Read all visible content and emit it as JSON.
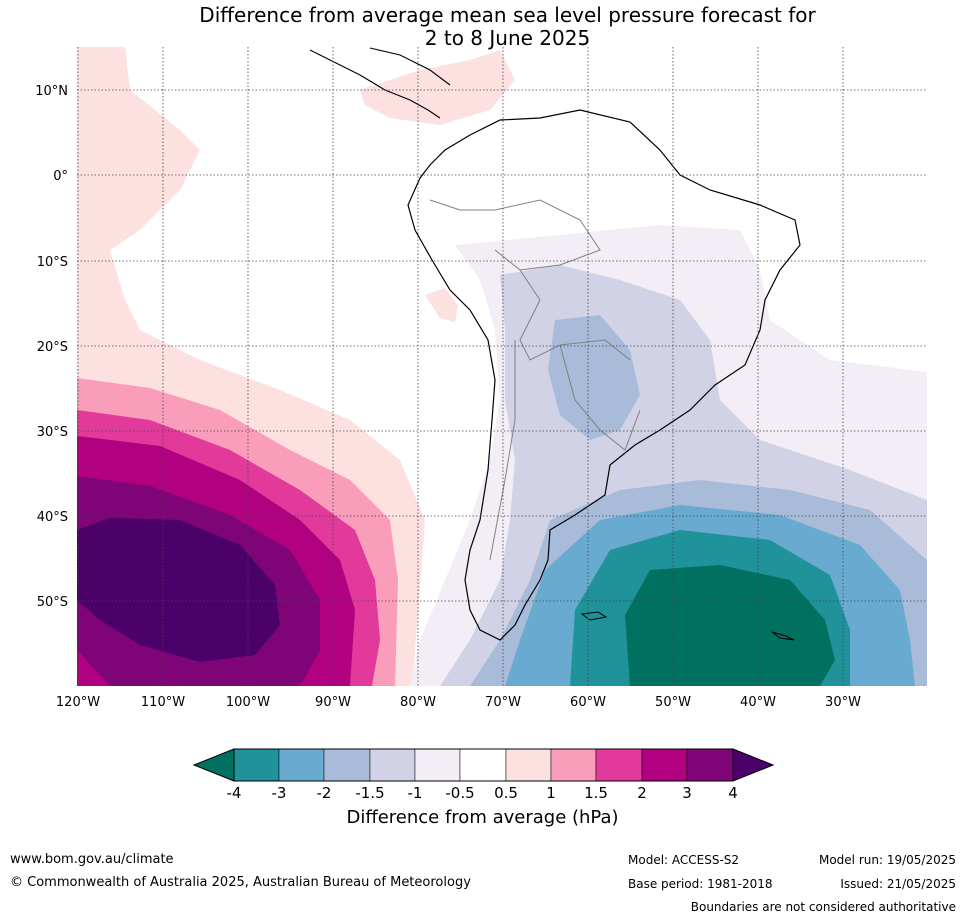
{
  "title": {
    "line1": "Difference from average mean sea level pressure forecast for",
    "line2": "2 to 8 June 2025"
  },
  "map": {
    "lat_labels": [
      "10°N",
      "0°",
      "10°S",
      "20°S",
      "30°S",
      "40°S",
      "50°S"
    ],
    "lon_labels": [
      "120°W",
      "110°W",
      "100°W",
      "90°W",
      "80°W",
      "70°W",
      "60°W",
      "50°W",
      "40°W",
      "30°W"
    ]
  },
  "colorbar": {
    "ticks": [
      "-4",
      "-3",
      "-2",
      "-1.5",
      "-1",
      "-0.5",
      "0.5",
      "1",
      "1.5",
      "2",
      "3",
      "4"
    ],
    "colors": [
      "#007060",
      "#1f929a",
      "#69abd0",
      "#a8bcda",
      "#d2d2e6",
      "#f3eef5",
      "#ffffff",
      "#fde0e0",
      "#fa9dbb",
      "#e13a9a",
      "#b10080",
      "#7e0477",
      "#4c006a"
    ],
    "label": "Difference from average (hPa)"
  },
  "footer": {
    "url": "www.bom.gov.au/climate",
    "copyright": "© Commonwealth of Australia 2025, Australian Bureau of Meteorology",
    "model": "Model: ACCESS-S2",
    "base_period": "Base period: 1981-2018",
    "model_run": "Model run: 19/05/2025",
    "issued": "Issued: 21/05/2025",
    "disclaimer": "Boundaries are not considered authoritative"
  }
}
